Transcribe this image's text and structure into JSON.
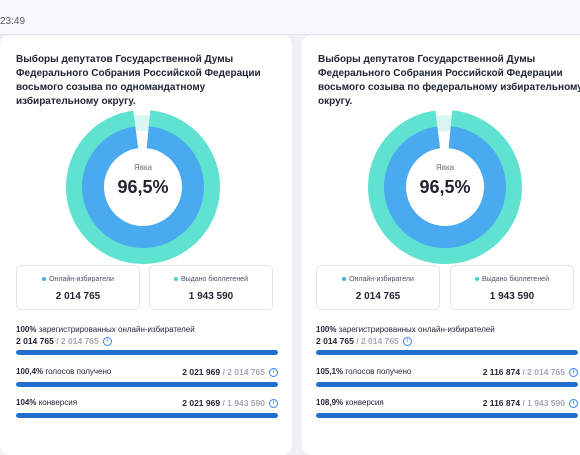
{
  "header": {
    "time": "23:49"
  },
  "cards": [
    {
      "title": "Выборы депутатов Государственной Думы Федерального Собрания Российской Федерации восьмого созыва по одномандатному избирательному округу.",
      "donut": {
        "label": "Явка",
        "value": "96,5%",
        "fraction": 0.965,
        "colors": {
          "outer": "#5fe3d0",
          "inner": "#4aaaf0",
          "gap": "#d9f6f3"
        }
      },
      "stats": [
        {
          "label": "Онлайн-избиратели",
          "value": "2 014 765",
          "dot_color": "#4aaaf0"
        },
        {
          "label": "Выдано бюллетеней",
          "value": "1 943 590",
          "dot_color": "#3fd6c4"
        }
      ],
      "metrics": [
        {
          "percent": "100%",
          "text": "зарегистрированных онлайн-избирателей",
          "value": "2 014 765",
          "total": "/ 2 014 765",
          "fraction": 1.0
        },
        {
          "percent": "100,4%",
          "text": "голосов получено",
          "value": "2 021 969",
          "total": "/ 2 014 765",
          "fraction": 1.0
        },
        {
          "percent": "104%",
          "text": "конверсия",
          "value": "2 021 969",
          "total": "/ 1 943 590",
          "fraction": 1.0
        }
      ]
    },
    {
      "title": "Выборы депутатов Государственной Думы Федерального Собрания Российской Федерации восьмого созыва по федеральному избирательному округу.",
      "donut": {
        "label": "Явка",
        "value": "96,5%",
        "fraction": 0.965,
        "colors": {
          "outer": "#5fe3d0",
          "inner": "#4aaaf0",
          "gap": "#d9f6f3"
        }
      },
      "stats": [
        {
          "label": "Онлайн-избиратели",
          "value": "2 014 765",
          "dot_color": "#4aaaf0"
        },
        {
          "label": "Выдано бюллетеней",
          "value": "1 943 590",
          "dot_color": "#3fd6c4"
        }
      ],
      "metrics": [
        {
          "percent": "100%",
          "text": "зарегистрированных онлайн-избирателей",
          "value": "2 014 765",
          "total": "/ 2 014 765",
          "fraction": 1.0
        },
        {
          "percent": "105,1%",
          "text": "голосов получено",
          "value": "2 116 874",
          "total": "/ 2 014 765",
          "fraction": 1.0
        },
        {
          "percent": "108,9%",
          "text": "конверсия",
          "value": "2 116 874",
          "total": "/ 1 943 590",
          "fraction": 1.0
        }
      ]
    }
  ],
  "icons": {
    "info": "info-icon"
  }
}
